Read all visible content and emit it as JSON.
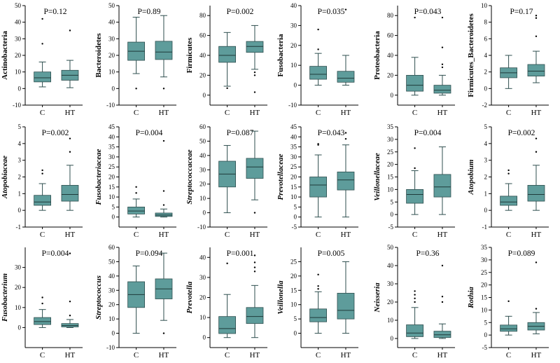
{
  "colors": {
    "box_fill": "#5e9c9b",
    "box_edge": "#2f4f4f",
    "axis": "#000000",
    "outlier": "#000000"
  },
  "chart_data": [
    {
      "type": "box",
      "ylabel": "Actinobacteria",
      "italic": false,
      "annotation": "P=0.12",
      "ylim": [
        -10,
        50
      ],
      "yticks": [
        -10,
        0,
        10,
        20,
        30,
        40,
        50
      ],
      "categories": [
        "C",
        "HT"
      ],
      "boxes": [
        {
          "whisker_low": 1,
          "q1": 4,
          "median": 6.5,
          "q3": 10,
          "whisker_high": 16,
          "outliers": [
            27,
            42
          ]
        },
        {
          "whisker_low": 0.5,
          "q1": 5,
          "median": 8,
          "q3": 11,
          "whisker_high": 17,
          "outliers": [
            35
          ]
        }
      ]
    },
    {
      "type": "box",
      "ylabel": "Bacteroidetes",
      "italic": false,
      "annotation": "P=0.89",
      "ylim": [
        -10,
        50
      ],
      "yticks": [
        -10,
        0,
        10,
        20,
        30,
        40,
        50
      ],
      "categories": [
        "C",
        "HT"
      ],
      "boxes": [
        {
          "whisker_low": 9,
          "q1": 17,
          "median": 22.5,
          "q3": 28,
          "whisker_high": 43,
          "outliers": [
            0
          ]
        },
        {
          "whisker_low": 7,
          "q1": 17.5,
          "median": 22,
          "q3": 28.5,
          "whisker_high": 44,
          "outliers": [
            0
          ]
        }
      ]
    },
    {
      "type": "box",
      "ylabel": "Firmicutes",
      "italic": false,
      "annotation": "P=0.002",
      "ylim": [
        -10,
        90
      ],
      "yticks": [
        0,
        20,
        40,
        60,
        80
      ],
      "categories": [
        "C",
        "HT"
      ],
      "boxes": [
        {
          "whisker_low": 9,
          "q1": 33,
          "median": 40,
          "q3": 49,
          "whisker_high": 63,
          "outliers": [
            7
          ]
        },
        {
          "whisker_low": 26,
          "q1": 43,
          "median": 49,
          "q3": 54,
          "whisker_high": 70,
          "outliers": [
            20,
            23,
            3
          ]
        }
      ]
    },
    {
      "type": "box",
      "ylabel": "Fusobacteria",
      "italic": false,
      "annotation": "P=0.035",
      "ylim": [
        -10,
        40
      ],
      "yticks": [
        -10,
        0,
        10,
        20,
        30,
        40
      ],
      "categories": [
        "C",
        "HT"
      ],
      "boxes": [
        {
          "whisker_low": 0,
          "q1": 3,
          "median": 5.5,
          "q3": 9.5,
          "whisker_high": 16,
          "outliers": [
            18,
            28
          ]
        },
        {
          "whisker_low": 0,
          "q1": 1.5,
          "median": 3.5,
          "q3": 7,
          "whisker_high": 15,
          "outliers": [
            38
          ]
        }
      ]
    },
    {
      "type": "box",
      "ylabel": "Proteobacteria",
      "italic": false,
      "annotation": "P=0.043",
      "ylim": [
        -10,
        90
      ],
      "yticks": [
        0,
        20,
        40,
        60,
        80
      ],
      "categories": [
        "C",
        "HT"
      ],
      "boxes": [
        {
          "whisker_low": 0,
          "q1": 4,
          "median": 10,
          "q3": 20,
          "whisker_high": 38,
          "outliers": [
            78
          ]
        },
        {
          "whisker_low": 0,
          "q1": 2,
          "median": 5,
          "q3": 10,
          "whisker_high": 20,
          "outliers": [
            28,
            31,
            48,
            78
          ]
        }
      ]
    },
    {
      "type": "box",
      "ylabel": "Firmicutes_Bacteroidetes",
      "italic": false,
      "annotation": "P=0.17",
      "ylim": [
        -2,
        10
      ],
      "yticks": [
        -2,
        0,
        2,
        4,
        6,
        8,
        10
      ],
      "categories": [
        "C",
        "HT"
      ],
      "boxes": [
        {
          "whisker_low": 0,
          "q1": 1.3,
          "median": 1.9,
          "q3": 2.5,
          "whisker_high": 4,
          "outliers": []
        },
        {
          "whisker_low": 0.7,
          "q1": 1.5,
          "median": 2.1,
          "q3": 2.9,
          "whisker_high": 4.5,
          "outliers": [
            6.3,
            8.5,
            8.8
          ]
        }
      ]
    },
    {
      "type": "box",
      "ylabel": "Atopobiaceae",
      "italic": true,
      "annotation": "P=0.002",
      "ylim": [
        -1,
        5
      ],
      "yticks": [
        -1,
        0,
        1,
        2,
        3,
        4,
        5
      ],
      "categories": [
        "C",
        "HT"
      ],
      "boxes": [
        {
          "whisker_low": 0,
          "q1": 0.3,
          "median": 0.5,
          "q3": 0.9,
          "whisker_high": 1.6,
          "outliers": [
            2.2,
            2.4
          ]
        },
        {
          "whisker_low": 0,
          "q1": 0.55,
          "median": 0.95,
          "q3": 1.5,
          "whisker_high": 2.7,
          "outliers": [
            3.5,
            4.3
          ]
        }
      ]
    },
    {
      "type": "box",
      "ylabel": "Fusobacteriaceae",
      "italic": true,
      "annotation": "P=0.004",
      "ylim": [
        -5,
        45
      ],
      "yticks": [
        0,
        5,
        10,
        15,
        20,
        25,
        30,
        35,
        40,
        45
      ],
      "categories": [
        "C",
        "HT"
      ],
      "boxes": [
        {
          "whisker_low": 0,
          "q1": 1.5,
          "median": 3,
          "q3": 5,
          "whisker_high": 9,
          "outliers": [
            12,
            15
          ]
        },
        {
          "whisker_low": 0,
          "q1": 0.3,
          "median": 1,
          "q3": 2,
          "whisker_high": 4,
          "outliers": [
            6,
            13,
            38
          ]
        }
      ]
    },
    {
      "type": "box",
      "ylabel": "Streptococcaceae",
      "italic": true,
      "annotation": "P=0.087",
      "ylim": [
        -10,
        60
      ],
      "yticks": [
        -10,
        0,
        10,
        20,
        30,
        40,
        50,
        60
      ],
      "categories": [
        "C",
        "HT"
      ],
      "boxes": [
        {
          "whisker_low": 0,
          "q1": 18,
          "median": 27,
          "q3": 36,
          "whisker_high": 47,
          "outliers": []
        },
        {
          "whisker_low": 9,
          "q1": 24,
          "median": 32,
          "q3": 38,
          "whisker_high": 57,
          "outliers": [
            0
          ]
        }
      ]
    },
    {
      "type": "box",
      "ylabel": "Prevotellaceae",
      "italic": true,
      "annotation": "P=0.043",
      "ylim": [
        -5,
        45
      ],
      "yticks": [
        -5,
        0,
        5,
        10,
        15,
        20,
        25,
        30,
        35,
        40,
        45
      ],
      "categories": [
        "C",
        "HT"
      ],
      "boxes": [
        {
          "whisker_low": 0,
          "q1": 10,
          "median": 16,
          "q3": 20,
          "whisker_high": 31,
          "outliers": [
            36,
            36.5
          ]
        },
        {
          "whisker_low": 0,
          "q1": 13.5,
          "median": 18.5,
          "q3": 22.5,
          "whisker_high": 36,
          "outliers": [
            39,
            42
          ]
        }
      ]
    },
    {
      "type": "box",
      "ylabel": "Veillonellaceae",
      "italic": true,
      "annotation": "P=0.004",
      "ylim": [
        -5,
        35
      ],
      "yticks": [
        -5,
        0,
        5,
        10,
        15,
        20,
        25,
        30,
        35
      ],
      "categories": [
        "C",
        "HT"
      ],
      "boxes": [
        {
          "whisker_low": 0,
          "q1": 4.5,
          "median": 8,
          "q3": 10,
          "whisker_high": 17.5,
          "outliers": [
            18.5,
            26.5
          ]
        },
        {
          "whisker_low": 0,
          "q1": 7,
          "median": 11,
          "q3": 16,
          "whisker_high": 27,
          "outliers": []
        }
      ]
    },
    {
      "type": "box",
      "ylabel": "Atopobium",
      "italic": true,
      "annotation": "P=0.002",
      "ylim": [
        -1,
        5
      ],
      "yticks": [
        -1,
        0,
        1,
        2,
        3,
        4,
        5
      ],
      "categories": [
        "C",
        "HT"
      ],
      "boxes": [
        {
          "whisker_low": 0,
          "q1": 0.3,
          "median": 0.5,
          "q3": 0.85,
          "whisker_high": 1.6,
          "outliers": [
            2.2,
            2.4
          ]
        },
        {
          "whisker_low": 0,
          "q1": 0.55,
          "median": 0.95,
          "q3": 1.5,
          "whisker_high": 2.7,
          "outliers": [
            3.5,
            4.3
          ]
        }
      ]
    },
    {
      "type": "box",
      "ylabel": "Fusobacterium",
      "italic": true,
      "annotation": "P=0.004",
      "ylim": [
        -10,
        40
      ],
      "yticks": [
        0,
        10,
        20,
        30
      ],
      "categories": [
        "C",
        "HT"
      ],
      "boxes": [
        {
          "whisker_low": 0,
          "q1": 1.5,
          "median": 3,
          "q3": 5,
          "whisker_high": 9,
          "outliers": [
            12,
            15
          ]
        },
        {
          "whisker_low": 0,
          "q1": 0.3,
          "median": 1,
          "q3": 2,
          "whisker_high": 4,
          "outliers": [
            6,
            13,
            37
          ]
        }
      ]
    },
    {
      "type": "box",
      "ylabel": "Streptococcus",
      "italic": true,
      "annotation": "P=0.094",
      "ylim": [
        -10,
        60
      ],
      "yticks": [
        -10,
        0,
        10,
        20,
        30,
        40,
        50,
        60
      ],
      "categories": [
        "C",
        "HT"
      ],
      "boxes": [
        {
          "whisker_low": 0,
          "q1": 18,
          "median": 27,
          "q3": 36,
          "whisker_high": 47,
          "outliers": []
        },
        {
          "whisker_low": 9,
          "q1": 24,
          "median": 31,
          "q3": 38,
          "whisker_high": 56,
          "outliers": [
            0
          ]
        }
      ]
    },
    {
      "type": "box",
      "ylabel": "Prevotella",
      "italic": true,
      "annotation": "P=0.001",
      "ylim": [
        -5,
        45
      ],
      "yticks": [
        0,
        10,
        20,
        30,
        40
      ],
      "categories": [
        "C",
        "HT"
      ],
      "boxes": [
        {
          "whisker_low": 0,
          "q1": 2,
          "median": 4.5,
          "q3": 10.5,
          "whisker_high": 21.5,
          "outliers": [
            37
          ]
        },
        {
          "whisker_low": 0,
          "q1": 7,
          "median": 10.5,
          "q3": 15,
          "whisker_high": 26,
          "outliers": [
            33,
            35,
            37.5,
            41
          ]
        }
      ]
    },
    {
      "type": "box",
      "ylabel": "Veillonella",
      "italic": true,
      "annotation": "P=0.005",
      "ylim": [
        -5,
        30
      ],
      "yticks": [
        0,
        5,
        10,
        15,
        20,
        25
      ],
      "categories": [
        "C",
        "HT"
      ],
      "boxes": [
        {
          "whisker_low": 0,
          "q1": 4,
          "median": 5.5,
          "q3": 8.5,
          "whisker_high": 14.5,
          "outliers": [
            15.5,
            16.5,
            20.5
          ]
        },
        {
          "whisker_low": 0,
          "q1": 5,
          "median": 8,
          "q3": 14,
          "whisker_high": 25,
          "outliers": []
        }
      ]
    },
    {
      "type": "box",
      "ylabel": "Neisseria",
      "italic": true,
      "annotation": "P=0.36",
      "ylim": [
        -5,
        50
      ],
      "yticks": [
        0,
        10,
        20,
        30,
        40,
        50
      ],
      "categories": [
        "C",
        "HT"
      ],
      "boxes": [
        {
          "whisker_low": 0,
          "q1": 1,
          "median": 3,
          "q3": 7.5,
          "whisker_high": 17,
          "outliers": [
            20,
            22,
            24,
            26
          ]
        },
        {
          "whisker_low": 0,
          "q1": 0.5,
          "median": 2,
          "q3": 4,
          "whisker_high": 8,
          "outliers": [
            20,
            23,
            40
          ]
        }
      ]
    },
    {
      "type": "box",
      "ylabel": "Rothia",
      "italic": true,
      "annotation": "P=0.089",
      "ylim": [
        -5,
        35
      ],
      "yticks": [
        -5,
        0,
        5,
        10,
        15,
        20,
        25,
        30,
        35
      ],
      "categories": [
        "C",
        "HT"
      ],
      "boxes": [
        {
          "whisker_low": 0,
          "q1": 1.5,
          "median": 2.5,
          "q3": 4,
          "whisker_high": 7.5,
          "outliers": [
            13.5
          ]
        },
        {
          "whisker_low": 0.5,
          "q1": 2,
          "median": 3.5,
          "q3": 5,
          "whisker_high": 9,
          "outliers": [
            10.5,
            29
          ]
        }
      ]
    }
  ]
}
